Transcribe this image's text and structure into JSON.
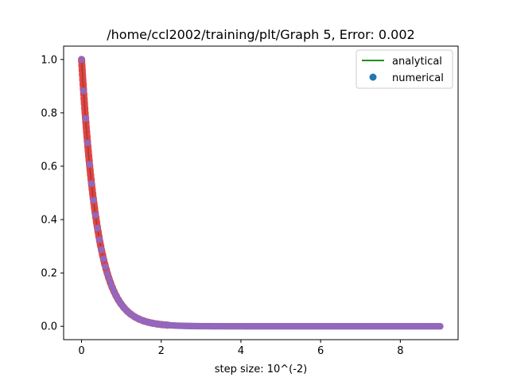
{
  "chart_data": {
    "type": "scatter",
    "title": "/home/ccl2002/training/plt/Graph 5, Error: 0.002",
    "xlabel": "step size: 10^(-2)",
    "ylabel": "",
    "xlim": [
      -0.45,
      9.45
    ],
    "ylim": [
      -0.05,
      1.05
    ],
    "xticks": [
      0,
      2,
      4,
      6,
      8
    ],
    "yticks": [
      0.0,
      0.2,
      0.4,
      0.6,
      0.8,
      1.0
    ],
    "xtick_labels": [
      "0",
      "2",
      "4",
      "6",
      "8"
    ],
    "ytick_labels": [
      "0.0",
      "0.2",
      "0.4",
      "0.6",
      "0.8",
      "1.0"
    ],
    "grid": false,
    "legend_position": "top-right",
    "x_range": [
      0,
      9
    ],
    "series": [
      {
        "name": "analytical",
        "kind": "line",
        "color": "#008000",
        "function": "exp(-2.5x)",
        "values_at_x": {
          "0": 1.0,
          "0.5": 0.287,
          "1": 0.082,
          "2": 0.007,
          "9": 0.0
        }
      },
      {
        "name": "numerical",
        "kind": "scatter",
        "color": "#1f77b4",
        "values_at_x": {
          "0": 1.0,
          "0.5": 0.287,
          "1": 0.082,
          "2": 0.007,
          "9": 0.0
        }
      },
      {
        "kind": "scatter",
        "color": "#9467bd",
        "values_at_x": {
          "0": 1.0,
          "0.5": 0.287,
          "1": 0.082,
          "2": 0.007,
          "9": 0.0
        }
      }
    ],
    "decay_rate": 2.5,
    "step": 0.01
  }
}
